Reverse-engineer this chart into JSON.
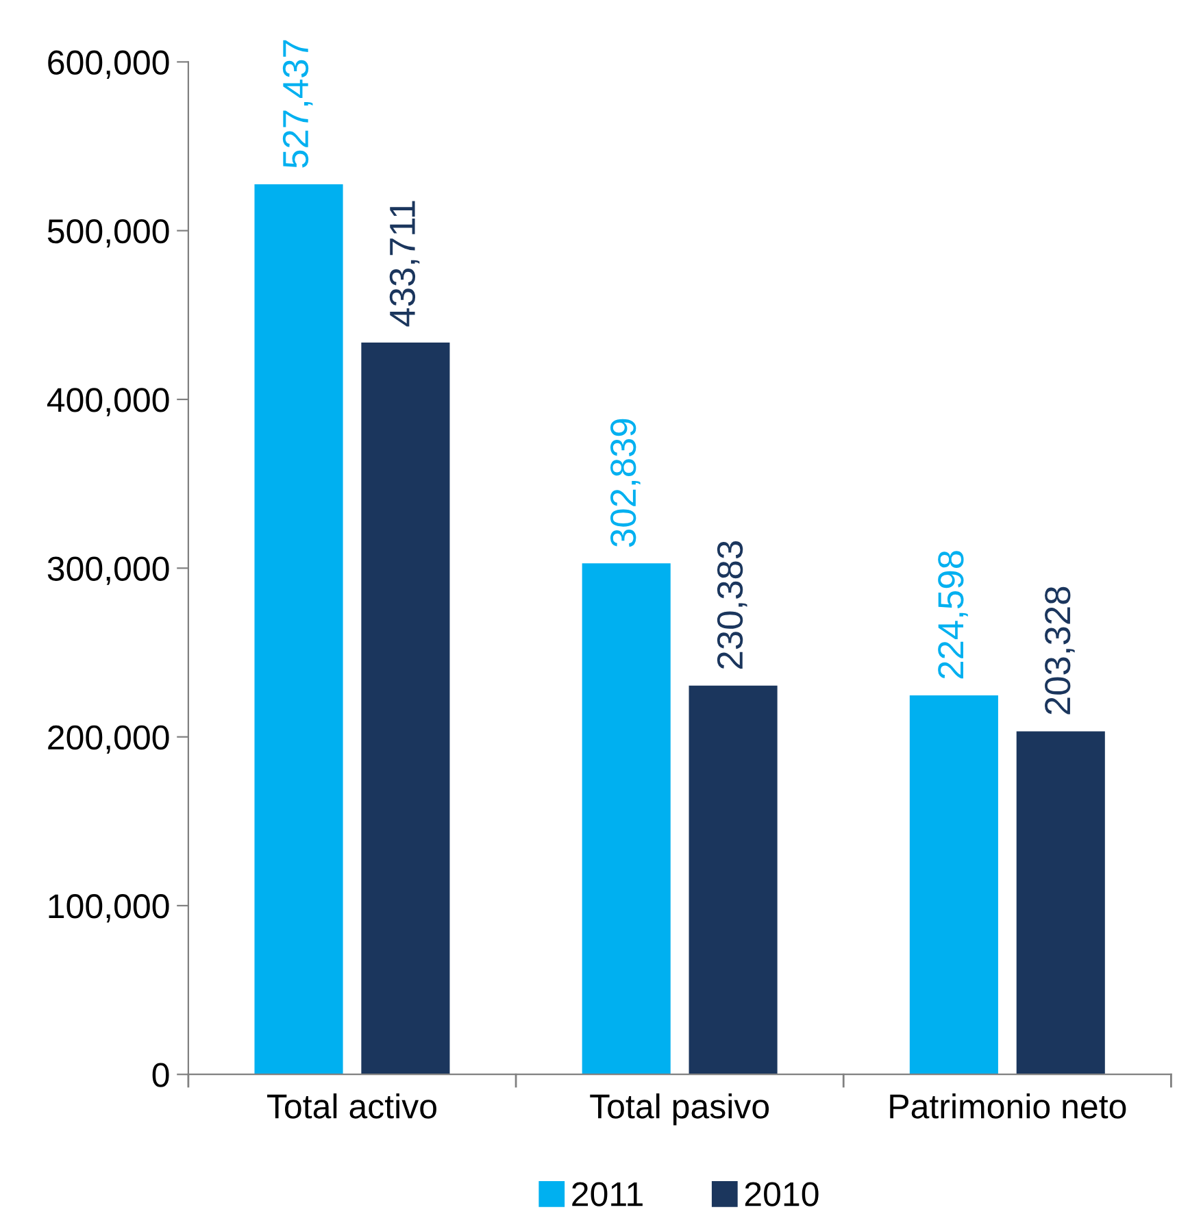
{
  "chart_data": {
    "type": "bar",
    "categories": [
      "Total activo",
      "Total pasivo",
      "Patrimonio neto"
    ],
    "series": [
      {
        "name": "2011",
        "color": "#00b0f0",
        "values": [
          527437,
          302839,
          224598
        ],
        "value_labels": [
          "527,437",
          "302,839",
          "224,598"
        ]
      },
      {
        "name": "2010",
        "color": "#1b365d",
        "values": [
          433711,
          230383,
          203328
        ],
        "value_labels": [
          "433,711",
          "230,383",
          "203,328"
        ]
      }
    ],
    "ylim": [
      0,
      600000
    ],
    "yticks": [
      {
        "value": 0,
        "label": "0"
      },
      {
        "value": 100000,
        "label": "100,000"
      },
      {
        "value": 200000,
        "label": "200,000"
      },
      {
        "value": 300000,
        "label": "300,000"
      },
      {
        "value": 400000,
        "label": "400,000"
      },
      {
        "value": 500000,
        "label": "500,000"
      },
      {
        "value": 600000,
        "label": "600,000"
      }
    ],
    "grid": false,
    "legend": "bottom"
  }
}
